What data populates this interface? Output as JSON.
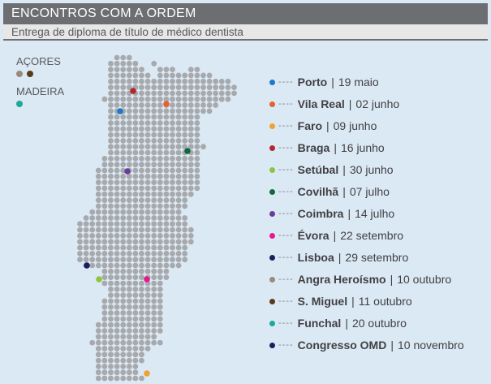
{
  "header": {
    "title": "ENCONTROS COM A ORDEM",
    "subtitle": "Entrega de diploma de título de médico dentista"
  },
  "islands": {
    "acores": {
      "label": "AÇORES",
      "dot_colors": [
        "#9a8a7a",
        "#5a3a1a"
      ]
    },
    "madeira": {
      "label": "MADEIRA",
      "dot_colors": [
        "#1aa99a"
      ]
    }
  },
  "colors": {
    "map_dot": "#a7a9ac",
    "background": "#dbe9f5",
    "header": "#6d6e71"
  },
  "legend": [
    {
      "city": "Porto",
      "date": "19 maio",
      "color": "#1f78c8"
    },
    {
      "city": "Vila Real",
      "date": "02 junho",
      "color": "#e8612c"
    },
    {
      "city": "Faro",
      "date": "09 junho",
      "color": "#f0a22e"
    },
    {
      "city": "Braga",
      "date": "16 junho",
      "color": "#b5262d"
    },
    {
      "city": "Setúbal",
      "date": "30 junho",
      "color": "#8cc63f"
    },
    {
      "city": "Covilhã",
      "date": "07 julho",
      "color": "#0b6b3a"
    },
    {
      "city": "Coimbra",
      "date": "14 julho",
      "color": "#6a3d9a"
    },
    {
      "city": "Évora",
      "date": "22 setembro",
      "color": "#e6198a"
    },
    {
      "city": "Lisboa",
      "date": "29 setembro",
      "color": "#1b1f5e"
    },
    {
      "city": "Angra Heroísmo",
      "date": "10 outubro",
      "color": "#9a8a7a"
    },
    {
      "city": "S. Miguel",
      "date": "11 outubro",
      "color": "#5a3a1a"
    },
    {
      "city": "Funchal",
      "date": "20 outubro",
      "color": "#1aa99a"
    },
    {
      "city": "Congresso OMD",
      "date": "10 novembro",
      "color": "#1b1f5e"
    }
  ],
  "legend_dash": "----",
  "legend_sep": "|"
}
